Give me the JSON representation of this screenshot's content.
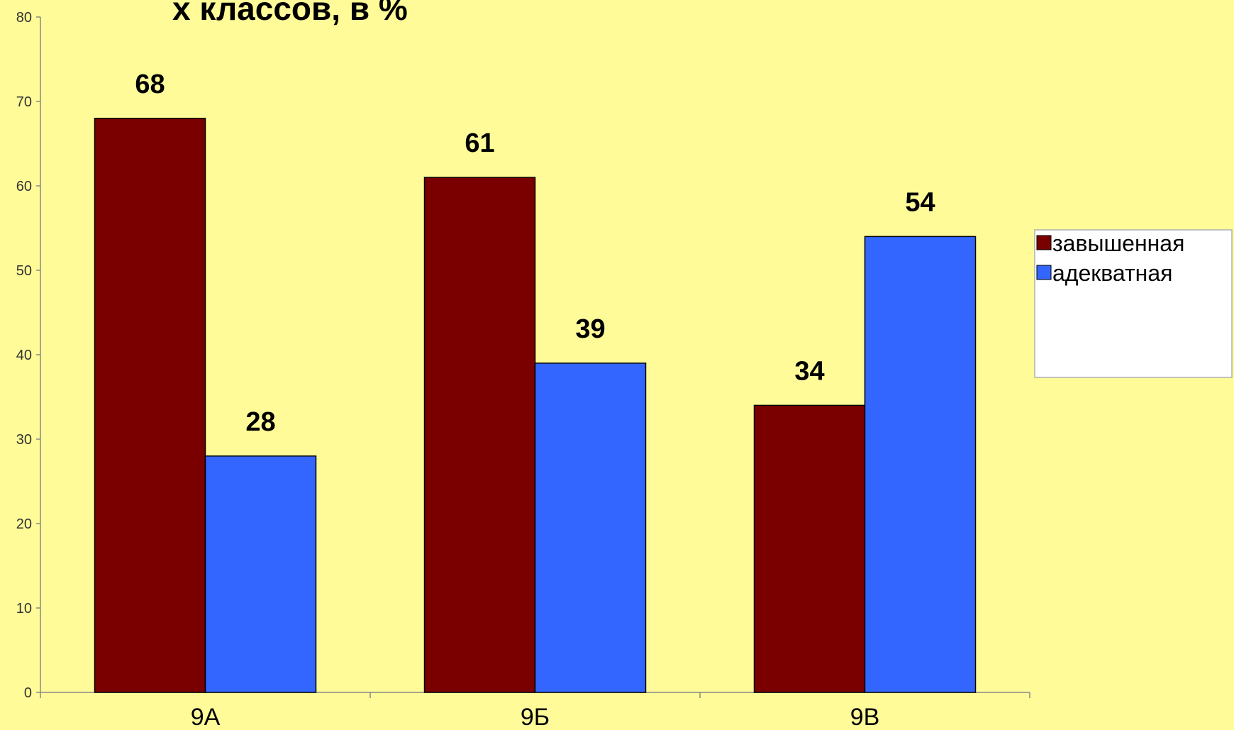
{
  "chart_data": {
    "type": "bar",
    "title": "х классов, в %",
    "categories": [
      "9А",
      "9Б",
      "9В"
    ],
    "series": [
      {
        "name": "завышенная",
        "values": [
          68,
          61,
          34
        ],
        "color": "#7A0000"
      },
      {
        "name": "адекватная",
        "values": [
          28,
          39,
          54
        ],
        "color": "#3366FF"
      }
    ],
    "ylim": [
      0,
      80
    ],
    "yticks": [
      0,
      10,
      20,
      30,
      40,
      50,
      60,
      70,
      80
    ],
    "grid": false,
    "legend_position": "right",
    "background": "#FFFB98"
  }
}
